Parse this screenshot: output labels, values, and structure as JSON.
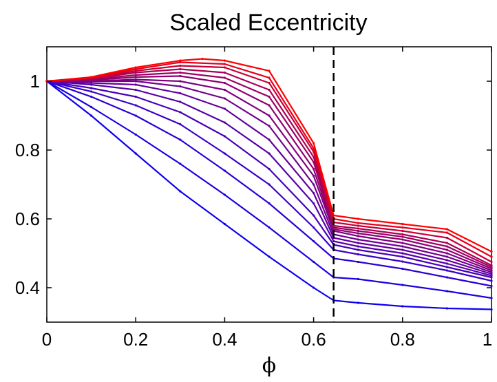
{
  "chart_data": {
    "type": "line",
    "title": "Scaled Eccentricity",
    "xlabel": "ϕ",
    "ylabel": "",
    "xlim": [
      0,
      1
    ],
    "ylim": [
      0.3,
      1.1
    ],
    "xticks": [
      0,
      0.2,
      0.4,
      0.6,
      0.8,
      1
    ],
    "xtick_labels": [
      "0",
      "0.2",
      "0.4",
      "0.6",
      "0.8",
      "1"
    ],
    "yticks": [
      0.4,
      0.6,
      0.8,
      1
    ],
    "ytick_labels": [
      "0.4",
      "0.6",
      "0.8",
      "1"
    ],
    "grid": false,
    "legend": "none",
    "color_gradient": [
      "#0000ff",
      "#ff0000"
    ],
    "reference_line": {
      "x": 0.645,
      "style": "dashed",
      "color": "#000000"
    },
    "series": [
      {
        "color": "#0f00f0",
        "points": [
          [
            0,
            1
          ],
          [
            0.1,
            0.9
          ],
          [
            0.2,
            0.79
          ],
          [
            0.3,
            0.68
          ],
          [
            0.4,
            0.585
          ],
          [
            0.5,
            0.49
          ],
          [
            0.6,
            0.4
          ],
          [
            0.645,
            0.363
          ],
          [
            0.7,
            0.356
          ],
          [
            0.8,
            0.346
          ],
          [
            0.9,
            0.34
          ],
          [
            1,
            0.337
          ]
        ]
      },
      {
        "color": "#1c00e3",
        "points": [
          [
            0,
            1
          ],
          [
            0.1,
            0.925
          ],
          [
            0.2,
            0.845
          ],
          [
            0.3,
            0.76
          ],
          [
            0.4,
            0.67
          ],
          [
            0.5,
            0.575
          ],
          [
            0.6,
            0.475
          ],
          [
            0.645,
            0.43
          ],
          [
            0.7,
            0.425
          ],
          [
            0.8,
            0.408
          ],
          [
            0.9,
            0.39
          ],
          [
            1,
            0.37
          ]
        ]
      },
      {
        "color": "#2a00d5",
        "points": [
          [
            0,
            1
          ],
          [
            0.1,
            0.955
          ],
          [
            0.2,
            0.9
          ],
          [
            0.3,
            0.83
          ],
          [
            0.4,
            0.74
          ],
          [
            0.5,
            0.645
          ],
          [
            0.6,
            0.535
          ],
          [
            0.645,
            0.485
          ],
          [
            0.7,
            0.475
          ],
          [
            0.8,
            0.455
          ],
          [
            0.9,
            0.43
          ],
          [
            1,
            0.405
          ]
        ]
      },
      {
        "color": "#3900c6",
        "points": [
          [
            0,
            1
          ],
          [
            0.1,
            0.97
          ],
          [
            0.2,
            0.93
          ],
          [
            0.3,
            0.875
          ],
          [
            0.4,
            0.79
          ],
          [
            0.5,
            0.7
          ],
          [
            0.6,
            0.575
          ],
          [
            0.645,
            0.51
          ],
          [
            0.7,
            0.497
          ],
          [
            0.8,
            0.476
          ],
          [
            0.9,
            0.45
          ],
          [
            1,
            0.42
          ]
        ]
      },
      {
        "color": "#4700b8",
        "points": [
          [
            0,
            1
          ],
          [
            0.1,
            0.98
          ],
          [
            0.2,
            0.955
          ],
          [
            0.3,
            0.91
          ],
          [
            0.4,
            0.84
          ],
          [
            0.5,
            0.745
          ],
          [
            0.6,
            0.61
          ],
          [
            0.645,
            0.525
          ],
          [
            0.7,
            0.51
          ],
          [
            0.8,
            0.49
          ],
          [
            0.9,
            0.46
          ],
          [
            1,
            0.43
          ]
        ]
      },
      {
        "color": "#5500aa",
        "points": [
          [
            0,
            1
          ],
          [
            0.1,
            0.99
          ],
          [
            0.2,
            0.975
          ],
          [
            0.3,
            0.94
          ],
          [
            0.4,
            0.88
          ],
          [
            0.5,
            0.79
          ],
          [
            0.6,
            0.645
          ],
          [
            0.645,
            0.535
          ],
          [
            0.7,
            0.52
          ],
          [
            0.8,
            0.5
          ],
          [
            0.9,
            0.47
          ],
          [
            1,
            0.435
          ]
        ]
      },
      {
        "color": "#63009c",
        "points": [
          [
            0,
            1
          ],
          [
            0.1,
            0.995
          ],
          [
            0.2,
            0.99
          ],
          [
            0.3,
            0.965
          ],
          [
            0.4,
            0.92
          ],
          [
            0.5,
            0.83
          ],
          [
            0.6,
            0.675
          ],
          [
            0.645,
            0.545
          ],
          [
            0.7,
            0.53
          ],
          [
            0.8,
            0.51
          ],
          [
            0.9,
            0.48
          ],
          [
            1,
            0.44
          ]
        ]
      },
      {
        "color": "#71008e",
        "points": [
          [
            0,
            1
          ],
          [
            0.1,
            1
          ],
          [
            0.2,
            1
          ],
          [
            0.3,
            0.985
          ],
          [
            0.4,
            0.95
          ],
          [
            0.5,
            0.87
          ],
          [
            0.6,
            0.7
          ],
          [
            0.645,
            0.555
          ],
          [
            0.7,
            0.54
          ],
          [
            0.8,
            0.52
          ],
          [
            0.9,
            0.49
          ],
          [
            1,
            0.445
          ]
        ]
      },
      {
        "color": "#800080",
        "points": [
          [
            0,
            1
          ],
          [
            0.1,
            1
          ],
          [
            0.2,
            1.005
          ],
          [
            0.3,
            1
          ],
          [
            0.4,
            0.975
          ],
          [
            0.5,
            0.9
          ],
          [
            0.6,
            0.725
          ],
          [
            0.645,
            0.565
          ],
          [
            0.7,
            0.55
          ],
          [
            0.8,
            0.53
          ],
          [
            0.9,
            0.5
          ],
          [
            1,
            0.45
          ]
        ]
      },
      {
        "color": "#8e0071",
        "points": [
          [
            0,
            1
          ],
          [
            0.1,
            1.003
          ],
          [
            0.2,
            1.012
          ],
          [
            0.3,
            1.015
          ],
          [
            0.4,
            0.995
          ],
          [
            0.5,
            0.93
          ],
          [
            0.6,
            0.745
          ],
          [
            0.645,
            0.57
          ],
          [
            0.7,
            0.558
          ],
          [
            0.8,
            0.54
          ],
          [
            0.9,
            0.51
          ],
          [
            1,
            0.455
          ]
        ]
      },
      {
        "color": "#9c0063",
        "points": [
          [
            0,
            1
          ],
          [
            0.1,
            1.005
          ],
          [
            0.2,
            1.018
          ],
          [
            0.3,
            1.025
          ],
          [
            0.4,
            1.01
          ],
          [
            0.5,
            0.955
          ],
          [
            0.6,
            0.765
          ],
          [
            0.645,
            0.575
          ],
          [
            0.7,
            0.565
          ],
          [
            0.8,
            0.548
          ],
          [
            0.9,
            0.52
          ],
          [
            1,
            0.46
          ]
        ]
      },
      {
        "color": "#aa0055",
        "points": [
          [
            0,
            1
          ],
          [
            0.1,
            1.007
          ],
          [
            0.2,
            1.025
          ],
          [
            0.3,
            1.035
          ],
          [
            0.4,
            1.025
          ],
          [
            0.5,
            0.975
          ],
          [
            0.6,
            0.78
          ],
          [
            0.645,
            0.58
          ],
          [
            0.7,
            0.572
          ],
          [
            0.8,
            0.555
          ],
          [
            0.9,
            0.53
          ],
          [
            1,
            0.465
          ]
        ]
      },
      {
        "color": "#c60039",
        "points": [
          [
            0,
            1
          ],
          [
            0.1,
            1.008
          ],
          [
            0.2,
            1.03
          ],
          [
            0.3,
            1.045
          ],
          [
            0.4,
            1.04
          ],
          [
            0.5,
            0.995
          ],
          [
            0.6,
            0.795
          ],
          [
            0.645,
            0.59
          ],
          [
            0.7,
            0.58
          ],
          [
            0.8,
            0.565
          ],
          [
            0.9,
            0.545
          ],
          [
            1,
            0.475
          ]
        ]
      },
      {
        "color": "#e3001c",
        "points": [
          [
            0,
            1
          ],
          [
            0.1,
            1.01
          ],
          [
            0.2,
            1.035
          ],
          [
            0.3,
            1.055
          ],
          [
            0.4,
            1.05
          ],
          [
            0.5,
            1.01
          ],
          [
            0.6,
            0.805
          ],
          [
            0.645,
            0.6
          ],
          [
            0.7,
            0.588
          ],
          [
            0.8,
            0.575
          ],
          [
            0.9,
            0.56
          ],
          [
            1,
            0.49
          ]
        ]
      },
      {
        "color": "#ff0000",
        "points": [
          [
            0,
            1
          ],
          [
            0.1,
            1.012
          ],
          [
            0.2,
            1.04
          ],
          [
            0.3,
            1.06
          ],
          [
            0.35,
            1.065
          ],
          [
            0.4,
            1.06
          ],
          [
            0.5,
            1.03
          ],
          [
            0.6,
            0.82
          ],
          [
            0.645,
            0.61
          ],
          [
            0.7,
            0.6
          ],
          [
            0.8,
            0.585
          ],
          [
            0.9,
            0.57
          ],
          [
            1,
            0.505
          ]
        ]
      }
    ]
  }
}
